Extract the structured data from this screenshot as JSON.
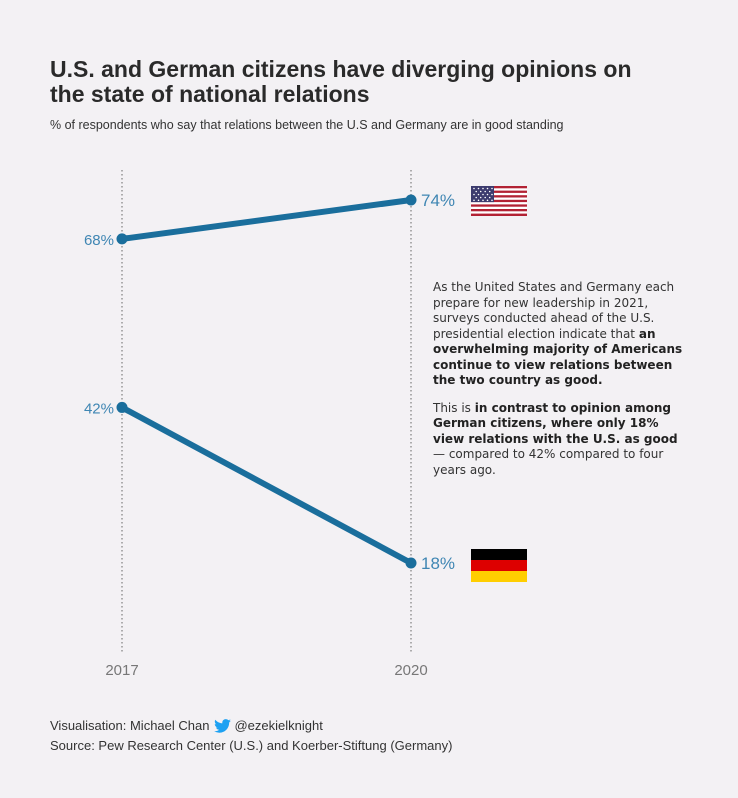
{
  "title": "U.S. and German citizens have diverging opinions on the state of national relations",
  "subtitle": "% of respondents who say that relations between the U.S and Germany are in good standing",
  "chart_data": {
    "type": "line",
    "x": [
      "2017",
      "2020"
    ],
    "series": [
      {
        "country": "United States",
        "values": [
          68,
          74
        ],
        "labels": [
          "68%",
          "74%"
        ]
      },
      {
        "country": "Germany",
        "values": [
          42,
          18
        ],
        "labels": [
          "42%",
          "18%"
        ]
      }
    ],
    "ylim": [
      0,
      100
    ],
    "line_color": "#1a6e9c",
    "label_color": "#3f86b3",
    "grid": false
  },
  "annotation": {
    "p1_plain": "As the United States and Germany each prepare for new leadership in 2021, surveys conducted ahead of the U.S. presidential election indicate that",
    "p1_bold": "an overwhelming majority of Americans continue to view relations between the two country as good.",
    "p2_plain_before": "This is",
    "p2_bold": "in contrast to opinion among German citizens, where only 18% view relations with the U.S. as good",
    "p2_plain_after": "— compared to 42% compared to four years ago."
  },
  "footer": {
    "credit_prefix": "Visualisation: Michael Chan",
    "twitter_handle": "@ezekielknight",
    "source": "Source: Pew Research Center (U.S.) and Koerber-Stiftung (Germany)"
  },
  "icons": [
    "us-flag-icon",
    "germany-flag-icon",
    "twitter-icon"
  ]
}
